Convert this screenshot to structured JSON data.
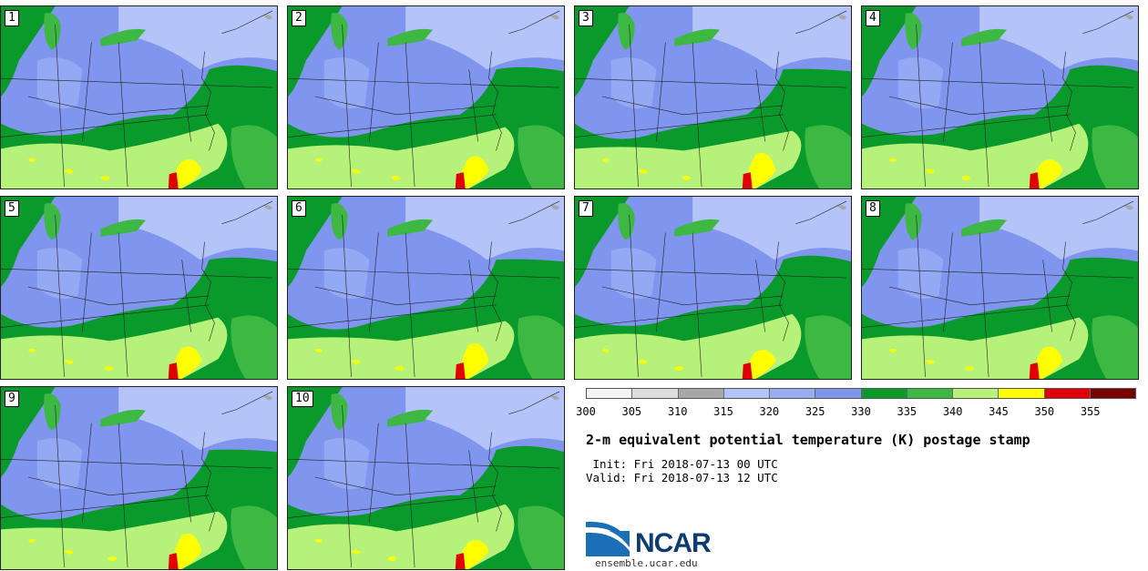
{
  "panels": [
    {
      "label": "1"
    },
    {
      "label": "2"
    },
    {
      "label": "3"
    },
    {
      "label": "4"
    },
    {
      "label": "5"
    },
    {
      "label": "6"
    },
    {
      "label": "7"
    },
    {
      "label": "8"
    },
    {
      "label": "9"
    },
    {
      "label": "10"
    }
  ],
  "colorbar": {
    "colors": [
      "#f4f4f4",
      "#dcdcdc",
      "#a8a8a8",
      "#b4c4f8",
      "#9aaef4",
      "#7f95ee",
      "#0a9a2c",
      "#3cb843",
      "#b6f27a",
      "#ffff00",
      "#e00000",
      "#7a0000"
    ],
    "ticks": [
      "300",
      "305",
      "310",
      "315",
      "320",
      "325",
      "330",
      "335",
      "340",
      "345",
      "350",
      "355"
    ]
  },
  "title": "2-m equivalent potential temperature (K) postage stamp",
  "init": " Init: Fri 2018-07-13 00 UTC",
  "valid": "Valid: Fri 2018-07-13 12 UTC",
  "logo": {
    "text": "NCAR",
    "url": "ensemble.ucar.edu",
    "colors": [
      "#1a6fb5",
      "#0d3c73"
    ]
  }
}
